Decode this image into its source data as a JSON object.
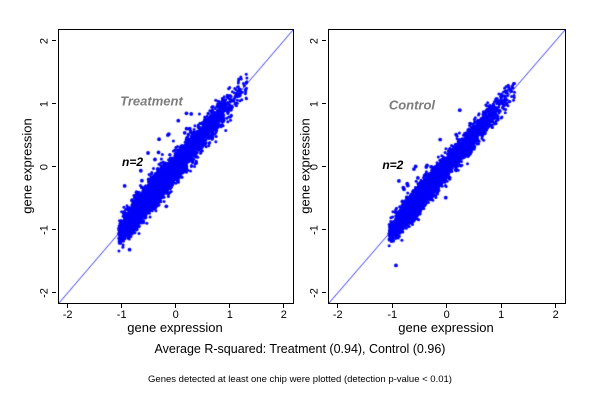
{
  "captions": {
    "r_squared": "Average R-squared: Treatment (0.94), Control (0.96)",
    "note": "Genes detected at least one chip were plotted (detection p-value < 0.01)"
  },
  "colors": {
    "background": "#ffffff",
    "point": "#0202fa",
    "identity_line": "#3434f2",
    "frame": "#000000",
    "panel_label": "#7d7d7d",
    "n_label": "#000000",
    "text": "#000000"
  },
  "chart_data": [
    {
      "type": "scatter",
      "title": "Treatment",
      "xlabel": "gene expression",
      "ylabel": "gene expression",
      "xlim": [
        -2.16,
        2.17
      ],
      "ylim": [
        -2.16,
        2.17
      ],
      "xticks": [
        -2,
        -1,
        0,
        1,
        2
      ],
      "yticks": [
        -2,
        -1,
        0,
        1,
        2
      ],
      "grid": false,
      "identity_line": true,
      "r_squared": 0.94,
      "n_annotation": "n=2",
      "n_annotation_pos": [
        -0.78,
        0.06
      ],
      "title_pos": [
        -0.43,
        1.03
      ],
      "points_model": {
        "description": "dense elliptical cloud of gene expression replicate pairs along y=x from about (-1.05,-1.05) to (1.3,1.3), densest between -0.9 and 0.2, with sparse outlier dots mostly above the diagonal",
        "seed": 42,
        "count": 5200,
        "mixture": [
          {
            "w": 0.7,
            "mu": -0.48,
            "sd": 0.3
          },
          {
            "w": 0.3,
            "mu": 0.35,
            "sd": 0.42
          }
        ],
        "u_range": [
          -1.06,
          1.32
        ],
        "noise_sd": 0.115,
        "outliers": 26,
        "outlier_u_range": [
          -0.95,
          0.35
        ],
        "outlier_dist_range": [
          0.12,
          0.75
        ],
        "outlier_above_frac": 0.8
      }
    },
    {
      "type": "scatter",
      "title": "Control",
      "xlabel": "gene expression",
      "ylabel": "gene expression",
      "xlim": [
        -2.16,
        2.17
      ],
      "ylim": [
        -2.16,
        2.17
      ],
      "xticks": [
        -2,
        -1,
        0,
        1,
        2
      ],
      "yticks": [
        -2,
        -1,
        0,
        1,
        2
      ],
      "grid": false,
      "identity_line": true,
      "r_squared": 0.96,
      "n_annotation": "n=2",
      "n_annotation_pos": [
        -0.97,
        0.02
      ],
      "title_pos": [
        -0.62,
        0.97
      ],
      "points_model": {
        "description": "dense elliptical cloud of gene expression replicate pairs along y=x from about (-1.05,-1.0) to (1.25,1.22), slightly tighter than Treatment, with sparse outlier dots mostly above the diagonal",
        "seed": 99,
        "count": 5200,
        "mixture": [
          {
            "w": 0.7,
            "mu": -0.5,
            "sd": 0.28
          },
          {
            "w": 0.3,
            "mu": 0.3,
            "sd": 0.4
          }
        ],
        "u_range": [
          -1.06,
          1.26
        ],
        "noise_sd": 0.095,
        "outliers": 24,
        "outlier_u_range": [
          -0.95,
          0.35
        ],
        "outlier_dist_range": [
          0.12,
          0.7
        ],
        "outlier_above_frac": 0.75
      }
    }
  ]
}
